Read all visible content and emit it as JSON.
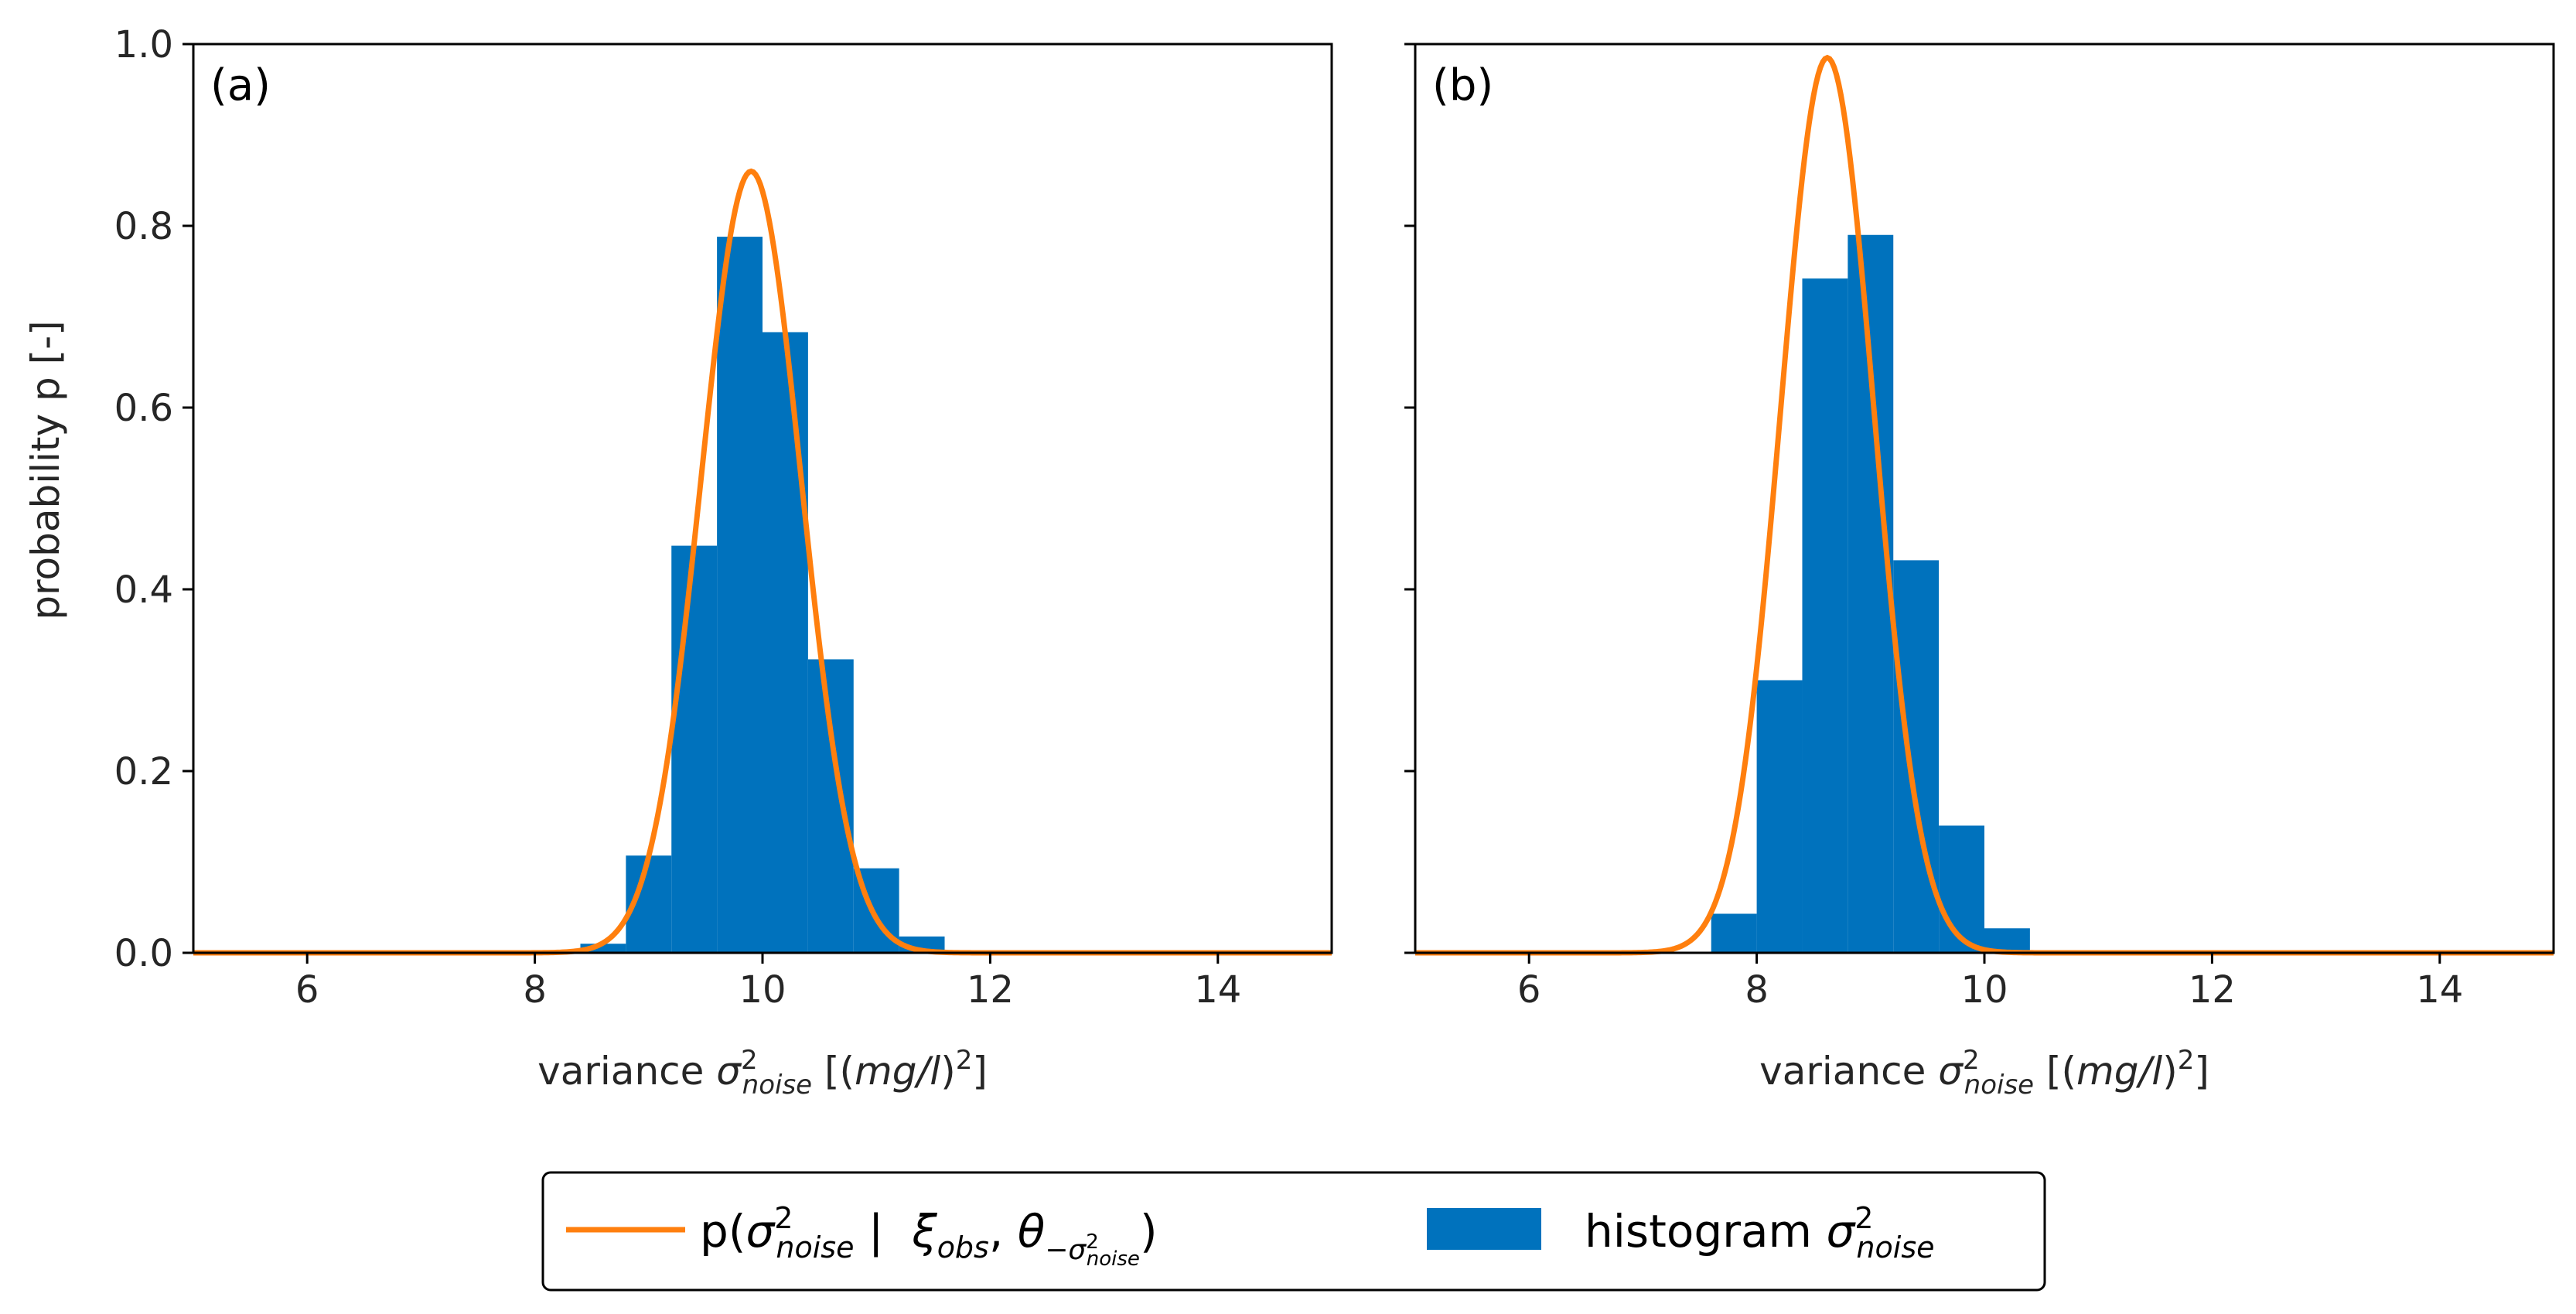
{
  "colors": {
    "histogram": "#0072bd",
    "curve": "#ff7f0e",
    "axis": "#000000"
  },
  "chart_data": [
    {
      "type": "bar",
      "panel_label": "(a)",
      "xlim": [
        5,
        15
      ],
      "ylim": [
        0,
        1.0
      ],
      "xticks": [
        "6",
        "8",
        "10",
        "12",
        "14"
      ],
      "yticks": [
        "0.0",
        "0.2",
        "0.4",
        "0.6",
        "0.8",
        "1.0"
      ],
      "ylabel": "probability p [-]",
      "xlabel": {
        "prefix": "variance",
        "symbol": "σ",
        "superscript": "2",
        "subscript": "noise",
        "unit_open": "[(",
        "unit": "mg/l",
        "unit_close": ")",
        "unit_sup": "2",
        "unit_end": "]"
      },
      "histogram": {
        "bin_width": 0.4,
        "bin_starts": [
          8.4,
          8.8,
          9.2,
          9.6,
          10.0,
          10.4,
          10.8,
          11.2
        ],
        "values": [
          0.01,
          0.107,
          0.448,
          0.788,
          0.683,
          0.323,
          0.093,
          0.018
        ]
      },
      "curve": {
        "mean": 9.9,
        "peak": 0.86,
        "sigma": 0.44
      }
    },
    {
      "type": "bar",
      "panel_label": "(b)",
      "xlim": [
        5,
        15
      ],
      "ylim": [
        0,
        1.0
      ],
      "xticks": [
        "6",
        "8",
        "10",
        "12",
        "14"
      ],
      "yticks": [
        "0.0",
        "0.2",
        "0.4",
        "0.6",
        "0.8",
        "1.0"
      ],
      "ylabel": "",
      "xlabel": {
        "prefix": "variance",
        "symbol": "σ",
        "superscript": "2",
        "subscript": "noise",
        "unit_open": "[(",
        "unit": "mg/l",
        "unit_close": ")",
        "unit_sup": "2",
        "unit_end": "]"
      },
      "histogram": {
        "bin_width": 0.4,
        "bin_starts": [
          7.6,
          8.0,
          8.4,
          8.8,
          9.2,
          9.6,
          10.0,
          10.4
        ],
        "values": [
          0.043,
          0.3,
          0.742,
          0.79,
          0.432,
          0.14,
          0.027,
          0.003
        ]
      },
      "curve": {
        "mean": 8.62,
        "peak": 0.985,
        "sigma": 0.41
      }
    }
  ],
  "legend": {
    "curve_label": {
      "p_open": "p(",
      "sigma": "σ",
      "sup": "2",
      "sub": "noise",
      "bar": " |  ",
      "xi": "ξ",
      "xi_sub": "obs",
      "comma": ", ",
      "theta": "θ",
      "theta_sub_minus": "−",
      "theta_sub_sigma": "σ",
      "theta_sub_sup": "2",
      "theta_sub_sub": "noise",
      "close": ")"
    },
    "hist_label": {
      "word": "histogram ",
      "sigma": "σ",
      "sup": "2",
      "sub": "noise"
    }
  }
}
